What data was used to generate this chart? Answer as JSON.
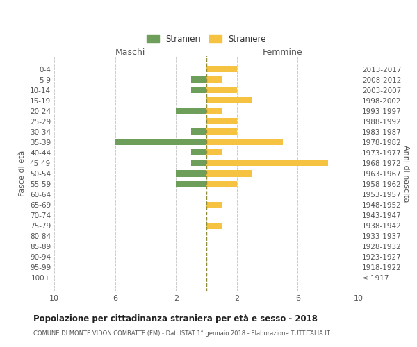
{
  "age_groups": [
    "0-4",
    "5-9",
    "10-14",
    "15-19",
    "20-24",
    "25-29",
    "30-34",
    "35-39",
    "40-44",
    "45-49",
    "50-54",
    "55-59",
    "60-64",
    "65-69",
    "70-74",
    "75-79",
    "80-84",
    "85-89",
    "90-94",
    "95-99",
    "100+"
  ],
  "birth_years": [
    "2013-2017",
    "2008-2012",
    "2003-2007",
    "1998-2002",
    "1993-1997",
    "1988-1992",
    "1983-1987",
    "1978-1982",
    "1973-1977",
    "1968-1972",
    "1963-1967",
    "1958-1962",
    "1953-1957",
    "1948-1952",
    "1943-1947",
    "1938-1942",
    "1933-1937",
    "1928-1932",
    "1923-1927",
    "1918-1922",
    "≤ 1917"
  ],
  "maschi": [
    0,
    1,
    1,
    0,
    2,
    0,
    1,
    6,
    1,
    1,
    2,
    2,
    0,
    0,
    0,
    0,
    0,
    0,
    0,
    0,
    0
  ],
  "femmine": [
    2,
    1,
    2,
    3,
    1,
    2,
    2,
    5,
    1,
    8,
    3,
    2,
    0,
    1,
    0,
    1,
    0,
    0,
    0,
    0,
    0
  ],
  "color_maschi": "#6d9e5a",
  "color_femmine": "#f5c242",
  "dashed_line_color": "#8b8b3a",
  "title": "Popolazione per cittadinanza straniera per età e sesso - 2018",
  "subtitle": "COMUNE DI MONTE VIDON COMBATTE (FM) - Dati ISTAT 1° gennaio 2018 - Elaborazione TUTTITALIA.IT",
  "xlabel_left": "Maschi",
  "xlabel_right": "Femmine",
  "ylabel_left": "Fasce di età",
  "ylabel_right": "Anni di nascita",
  "legend_stranieri": "Stranieri",
  "legend_straniere": "Straniere",
  "xlim": 10,
  "background_color": "#ffffff",
  "grid_color": "#cccccc"
}
